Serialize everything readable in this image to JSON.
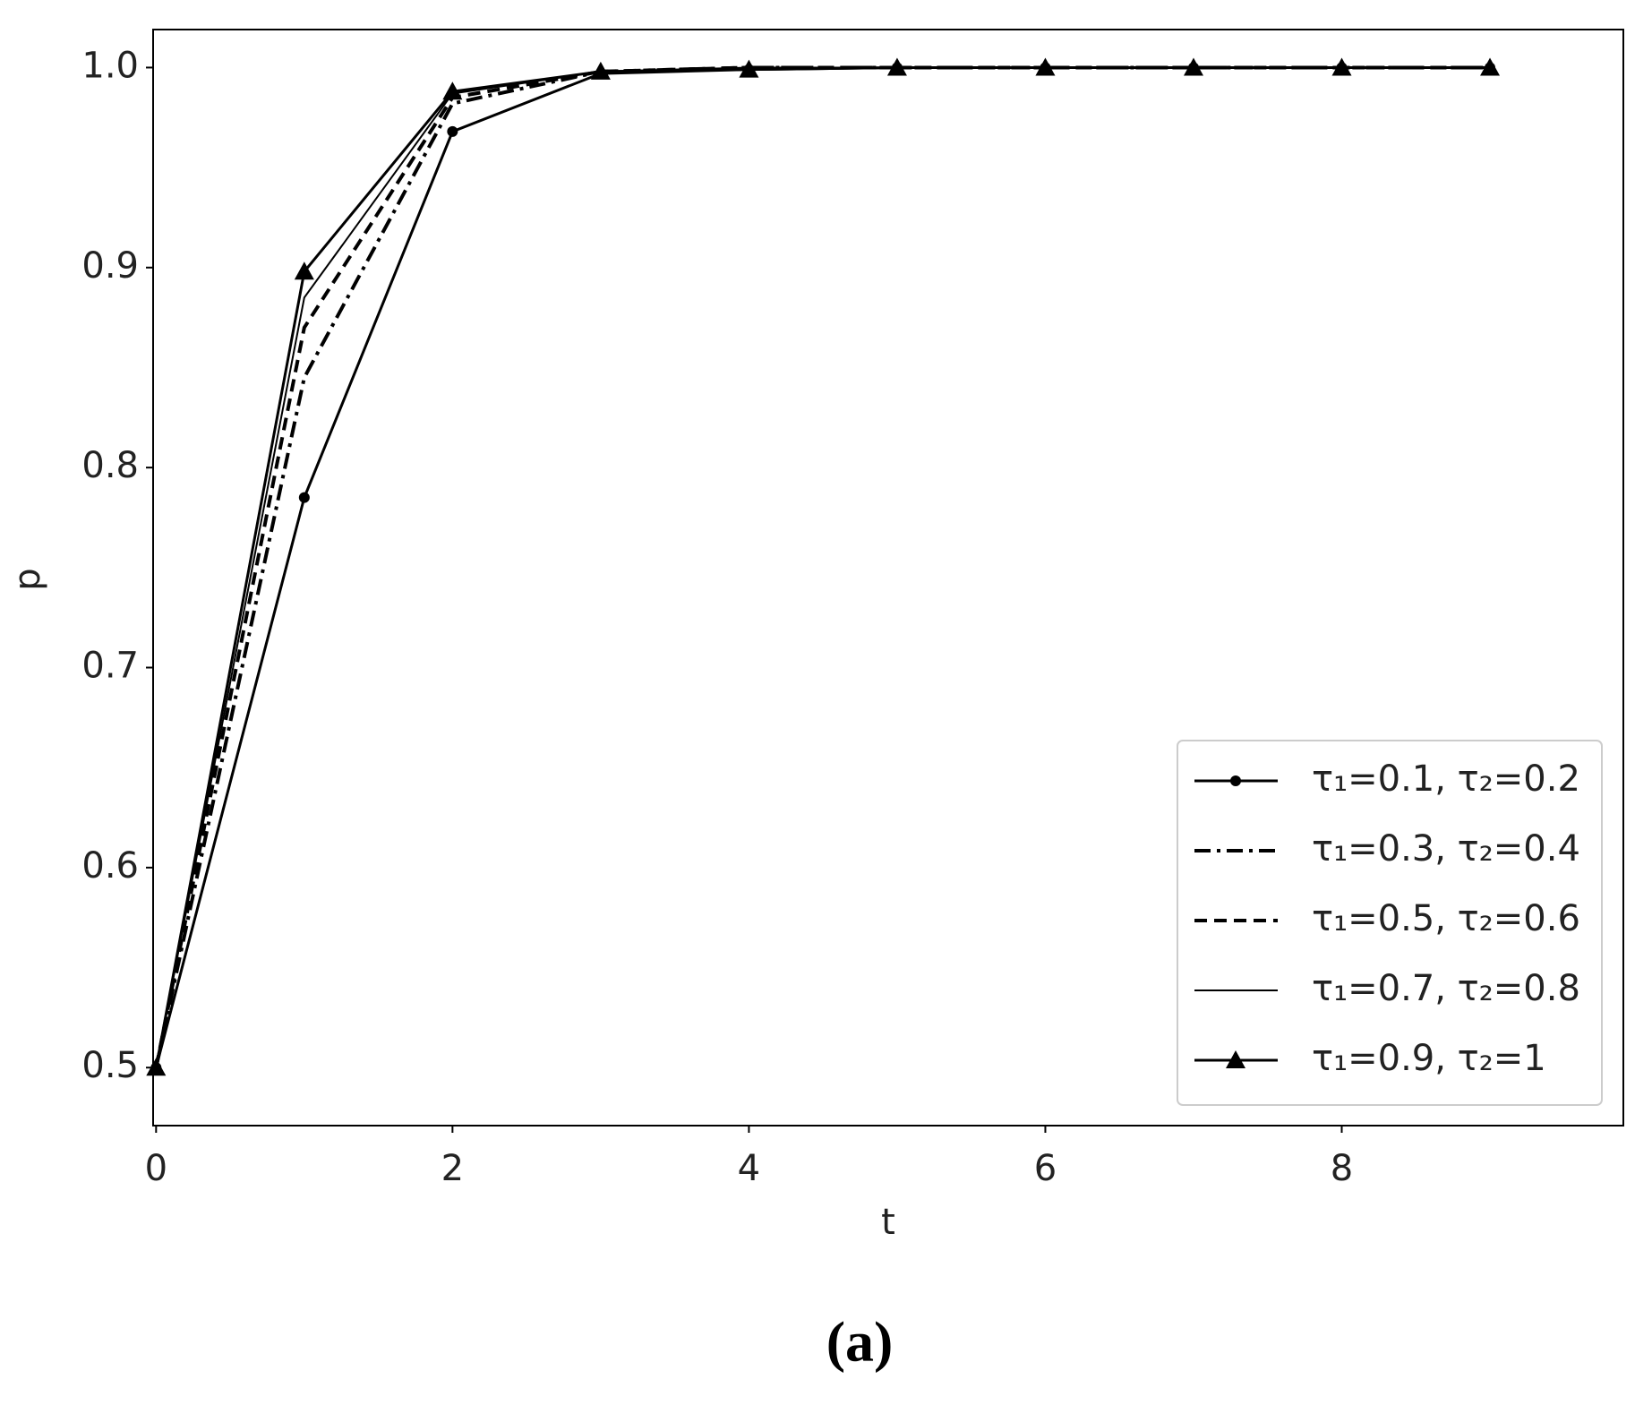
{
  "chart_data": {
    "type": "line",
    "caption": "(a)",
    "x_label": "t",
    "y_label": "p",
    "x": [
      0,
      1,
      2,
      3,
      4,
      5,
      6,
      7,
      8,
      9
    ],
    "series": [
      {
        "name": "τ₁=0.1, τ₂=0.2",
        "color": "#000000",
        "linestyle": "solid",
        "marker": "o",
        "values": [
          0.5,
          0.785,
          0.968,
          0.997,
          0.999,
          1.0,
          1.0,
          1.0,
          1.0,
          1.0
        ]
      },
      {
        "name": "τ₁=0.3, τ₂=0.4",
        "color": "#000000",
        "linestyle": "dashdot",
        "marker": "none",
        "values": [
          0.5,
          0.845,
          0.982,
          0.998,
          1.0,
          1.0,
          1.0,
          1.0,
          1.0,
          1.0
        ]
      },
      {
        "name": "τ₁=0.5, τ₂=0.6",
        "color": "#000000",
        "linestyle": "dashed",
        "marker": "none",
        "values": [
          0.5,
          0.87,
          0.985,
          0.998,
          1.0,
          1.0,
          1.0,
          1.0,
          1.0,
          1.0
        ]
      },
      {
        "name": "τ₁=0.7, τ₂=0.8",
        "color": "#000000",
        "linestyle": "thin",
        "marker": "none",
        "values": [
          0.5,
          0.885,
          0.987,
          0.998,
          1.0,
          1.0,
          1.0,
          1.0,
          1.0,
          1.0
        ]
      },
      {
        "name": "τ₁=0.9, τ₂=1",
        "color": "#000000",
        "linestyle": "solid",
        "marker": "^",
        "values": [
          0.5,
          0.898,
          0.988,
          0.998,
          0.999,
          1.0,
          1.0,
          1.0,
          1.0,
          1.0
        ]
      }
    ],
    "xlim": [
      -0.02,
      9.9
    ],
    "xticks": [
      0,
      2,
      4,
      6,
      8
    ],
    "ylim": [
      0.471,
      1.019
    ],
    "yticks": [
      0.5,
      0.6,
      0.7,
      0.8,
      0.9,
      {
        "value": 1,
        "label": "1.0"
      }
    ],
    "legend": "lower right"
  }
}
